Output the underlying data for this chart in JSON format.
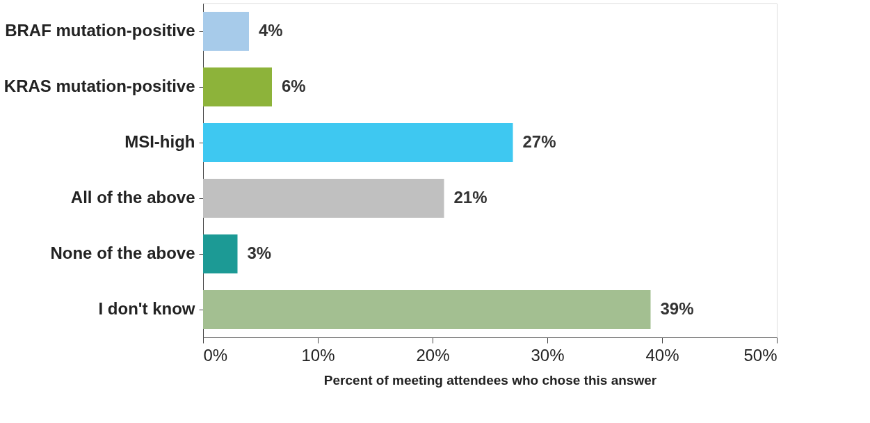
{
  "chart_data": {
    "type": "bar",
    "orientation": "horizontal",
    "xlabel": "Percent of meeting attendees who chose this answer",
    "categories": [
      "BRAF mutation-positive",
      "KRAS mutation-positive",
      "MSI-high",
      "All of the above",
      "None of the above",
      "I don't know"
    ],
    "values": [
      4,
      6,
      27,
      21,
      3,
      39
    ],
    "colors": [
      "#a7cbea",
      "#8db33a",
      "#3ec8f1",
      "#c0c0c0",
      "#1c9a95",
      "#a3bf91"
    ],
    "value_labels": [
      "4%",
      "6%",
      "27%",
      "21%",
      "3%",
      "39%"
    ],
    "xlim": [
      0,
      50
    ],
    "xticks": [
      {
        "value": 0,
        "label": "0%"
      },
      {
        "value": 10,
        "label": "10%"
      },
      {
        "value": 20,
        "label": "20%"
      },
      {
        "value": 30,
        "label": "30%"
      },
      {
        "value": 40,
        "label": "40%"
      },
      {
        "value": 50,
        "label": "50%"
      }
    ],
    "grid": false
  }
}
